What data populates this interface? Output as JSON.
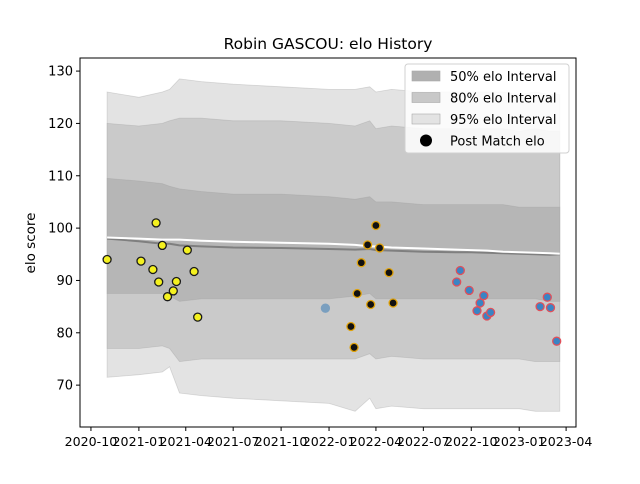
{
  "chart_data": {
    "type": "scatter",
    "title": "Robin GASCOU: elo History",
    "ylabel": "elo score",
    "xlabel": "",
    "ylim": [
      62,
      132.5
    ],
    "xlim": [
      "2020-09-10",
      "2023-04-20"
    ],
    "y_ticks": [
      70,
      80,
      90,
      100,
      110,
      120,
      130
    ],
    "x_ticks": [
      {
        "date": "2020-10-01",
        "label": "2020-10"
      },
      {
        "date": "2021-01-01",
        "label": "2021-01"
      },
      {
        "date": "2021-04-01",
        "label": "2021-04"
      },
      {
        "date": "2021-07-01",
        "label": "2021-07"
      },
      {
        "date": "2021-10-01",
        "label": "2021-10"
      },
      {
        "date": "2022-01-01",
        "label": "2022-01"
      },
      {
        "date": "2022-04-01",
        "label": "2022-04"
      },
      {
        "date": "2022-07-01",
        "label": "2022-07"
      },
      {
        "date": "2022-10-01",
        "label": "2022-10"
      },
      {
        "date": "2023-01-01",
        "label": "2023-01"
      },
      {
        "date": "2023-04-01",
        "label": "2023-04"
      }
    ],
    "legend_position": "top-right",
    "legend": [
      {
        "label": "50% elo Interval",
        "type": "patch",
        "color": "#b0b0b0"
      },
      {
        "label": "80% elo Interval",
        "type": "patch",
        "color": "#c8c8c8"
      },
      {
        "label": "95% elo Interval",
        "type": "patch",
        "color": "#e3e3e3"
      },
      {
        "label": "Post Match elo",
        "type": "marker",
        "color": "#000000"
      }
    ],
    "band_colors": {
      "p95": "#e3e3e3",
      "p80": "#cacaca",
      "p50": "#b6b6b6"
    },
    "intervals": {
      "x": [
        "2020-11-01",
        "2021-01-01",
        "2021-02-15",
        "2021-03-01",
        "2021-03-20",
        "2021-05-01",
        "2021-07-01",
        "2021-10-01",
        "2022-01-01",
        "2022-02-20",
        "2022-03-20",
        "2022-04-01",
        "2022-05-01",
        "2022-07-01",
        "2022-09-01",
        "2022-10-01",
        "2022-11-01",
        "2022-12-01",
        "2023-01-01",
        "2023-02-01",
        "2023-03-01",
        "2023-03-20"
      ],
      "p95_upper": [
        126,
        125,
        126,
        126.5,
        128.5,
        128,
        127.5,
        127,
        126.5,
        126.5,
        127,
        126,
        126.5,
        126,
        126,
        126,
        126,
        126,
        125.5,
        126,
        125.5,
        125.5
      ],
      "p80_upper": [
        120,
        119.5,
        120,
        120.5,
        121,
        121,
        120.5,
        120.5,
        120,
        119.5,
        120.5,
        119,
        119.5,
        119,
        119,
        119,
        119,
        119,
        118.5,
        119,
        118.5,
        118.5
      ],
      "p50_upper": [
        109.5,
        109,
        108.5,
        108,
        107.5,
        107,
        106.5,
        106.5,
        106,
        105.5,
        106,
        105,
        105,
        104.5,
        104.5,
        104.5,
        104.5,
        104.5,
        104,
        104,
        104,
        104
      ],
      "p50_lower": [
        87.5,
        87.5,
        87.5,
        87,
        86,
        86.5,
        86.5,
        86.5,
        86.5,
        87,
        87.5,
        86.5,
        86.5,
        86.5,
        86.5,
        86.5,
        86.5,
        86.5,
        86.5,
        86.5,
        86,
        86
      ],
      "p80_lower": [
        77,
        77,
        77.5,
        77,
        74.5,
        75,
        75,
        75,
        75,
        75,
        76,
        75,
        75.5,
        75,
        75,
        75,
        75,
        75,
        75,
        74.5,
        74.5,
        74.5
      ],
      "p95_lower": [
        71.5,
        72,
        72.5,
        73.5,
        68.5,
        68,
        67.5,
        67,
        66.5,
        65,
        67.5,
        65.5,
        66,
        65.5,
        65.5,
        65.5,
        65.5,
        65.5,
        65.5,
        65,
        65,
        65
      ],
      "mean_dark": [
        98,
        97.5,
        97,
        97,
        96.7,
        96.5,
        96.3,
        96.2,
        96,
        95.9,
        96,
        95.8,
        95.7,
        95.5,
        95.4,
        95.4,
        95.3,
        95.2,
        95.1,
        95,
        94.9,
        95
      ],
      "mean_light": [
        98.2,
        98,
        97.8,
        97.8,
        97.8,
        97.6,
        97.4,
        97.2,
        97,
        96.8,
        96.5,
        96.5,
        96.3,
        96.1,
        95.9,
        95.8,
        95.7,
        95.5,
        95.4,
        95.3,
        95.2,
        95.1
      ]
    },
    "series": [
      {
        "face_color": "#f4f11f",
        "edge_color": "#1a1a1a",
        "points": [
          {
            "x": "2020-11-01",
            "y": 94
          },
          {
            "x": "2021-01-05",
            "y": 93.7
          },
          {
            "x": "2021-01-28",
            "y": 92.1
          },
          {
            "x": "2021-02-03",
            "y": 101
          },
          {
            "x": "2021-02-08",
            "y": 89.7
          },
          {
            "x": "2021-02-15",
            "y": 96.7
          },
          {
            "x": "2021-02-25",
            "y": 86.9
          },
          {
            "x": "2021-03-08",
            "y": 88
          },
          {
            "x": "2021-03-14",
            "y": 89.8
          },
          {
            "x": "2021-04-04",
            "y": 95.8
          },
          {
            "x": "2021-04-17",
            "y": 91.7
          },
          {
            "x": "2021-04-24",
            "y": 83
          }
        ]
      },
      {
        "face_color": "#7a9fbf",
        "edge_color": "#7a9fbf",
        "points": [
          {
            "x": "2021-12-25",
            "y": 84.7
          }
        ]
      },
      {
        "face_color": "#111111",
        "edge_color": "#e0a20a",
        "points": [
          {
            "x": "2022-02-12",
            "y": 81.2
          },
          {
            "x": "2022-02-18",
            "y": 77.2
          },
          {
            "x": "2022-02-24",
            "y": 87.5
          },
          {
            "x": "2022-03-04",
            "y": 93.4
          },
          {
            "x": "2022-03-16",
            "y": 96.8
          },
          {
            "x": "2022-03-22",
            "y": 85.4
          },
          {
            "x": "2022-04-01",
            "y": 100.5
          },
          {
            "x": "2022-04-08",
            "y": 96.2
          },
          {
            "x": "2022-04-26",
            "y": 91.5
          },
          {
            "x": "2022-05-04",
            "y": 85.7
          }
        ]
      },
      {
        "face_color": "#3a84c4",
        "edge_color": "#e0505a",
        "points": [
          {
            "x": "2022-09-03",
            "y": 89.7
          },
          {
            "x": "2022-09-10",
            "y": 91.9
          },
          {
            "x": "2022-09-27",
            "y": 88.1
          },
          {
            "x": "2022-10-12",
            "y": 84.2
          },
          {
            "x": "2022-10-18",
            "y": 85.7
          },
          {
            "x": "2022-10-25",
            "y": 87.1
          },
          {
            "x": "2022-10-31",
            "y": 83.2
          },
          {
            "x": "2022-11-07",
            "y": 83.9
          },
          {
            "x": "2023-02-10",
            "y": 85
          },
          {
            "x": "2023-02-24",
            "y": 86.8
          },
          {
            "x": "2023-03-02",
            "y": 84.8
          },
          {
            "x": "2023-03-14",
            "y": 78.4
          }
        ]
      }
    ]
  }
}
